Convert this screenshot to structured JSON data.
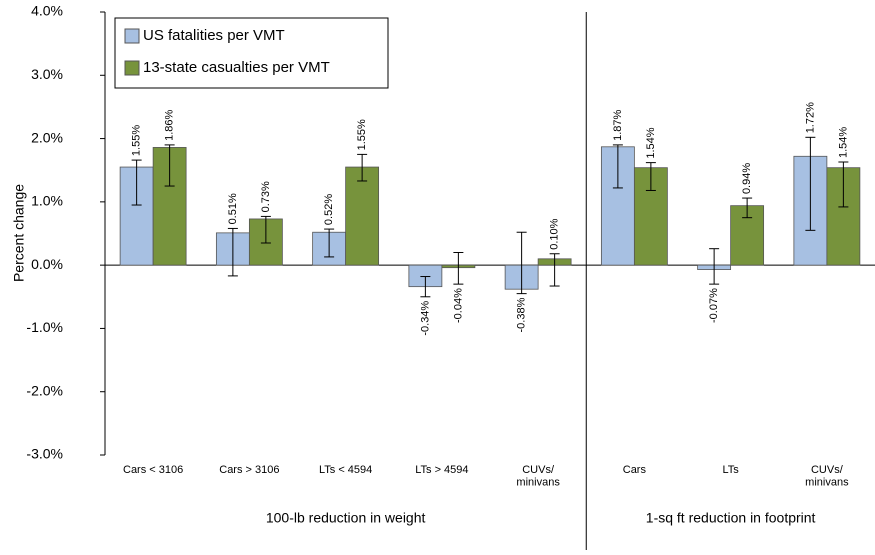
{
  "chart_data": {
    "type": "bar",
    "y_label": "Percent change",
    "categories": [
      "Cars < 3106",
      "Cars > 3106",
      "LTs < 4594",
      "LTs > 4594",
      "CUVs/\nminivans",
      "Cars",
      "LTs",
      "CUVs/\nminivans"
    ],
    "category_groups": [
      "100-lb reduction in weight",
      "100-lb reduction in weight",
      "100-lb reduction in weight",
      "100-lb reduction in weight",
      "100-lb reduction in weight",
      "1-sq ft reduction in footprint",
      "1-sq ft reduction in footprint",
      "1-sq ft reduction in footprint"
    ],
    "series": [
      {
        "name": "US fatalities per VMT",
        "color": "#a7c0e2",
        "values": [
          1.55,
          0.51,
          0.52,
          -0.34,
          -0.38,
          1.87,
          -0.07,
          1.72
        ],
        "value_labels": [
          "1.55%",
          "0.51%",
          "0.52%",
          "-0.34%",
          "-0.38%",
          "1.87%",
          "-0.07%",
          "1.72%"
        ],
        "error_low": [
          0.95,
          -0.17,
          0.13,
          -0.5,
          -0.45,
          1.22,
          -0.3,
          0.55
        ],
        "error_high": [
          1.66,
          0.58,
          0.57,
          -0.18,
          0.52,
          1.9,
          0.26,
          2.02
        ]
      },
      {
        "name": "13-state casualties per VMT",
        "color": "#77933c",
        "values": [
          1.86,
          0.73,
          1.55,
          -0.04,
          0.1,
          1.54,
          0.94,
          1.54
        ],
        "value_labels": [
          "1.86%",
          "0.73%",
          "1.55%",
          "-0.04%",
          "0.10%",
          "1.54%",
          "0.94%",
          "1.54%"
        ],
        "error_low": [
          1.25,
          0.35,
          1.33,
          -0.3,
          -0.33,
          1.18,
          0.75,
          0.92
        ],
        "error_high": [
          1.9,
          0.77,
          1.75,
          0.2,
          0.18,
          1.62,
          1.06,
          1.63
        ]
      }
    ],
    "ylim": [
      -3,
      4
    ],
    "yticks": [
      {
        "value": -3,
        "label": "-3.0%"
      },
      {
        "value": -2,
        "label": "-2.0%"
      },
      {
        "value": -1,
        "label": "-1.0%"
      },
      {
        "value": 0,
        "label": "0.0%"
      },
      {
        "value": 1,
        "label": "1.0%"
      },
      {
        "value": 2,
        "label": "2.0%"
      },
      {
        "value": 3,
        "label": "3.0%"
      },
      {
        "value": 4,
        "label": "4.0%"
      }
    ],
    "grid": false,
    "legend": "top-left"
  }
}
